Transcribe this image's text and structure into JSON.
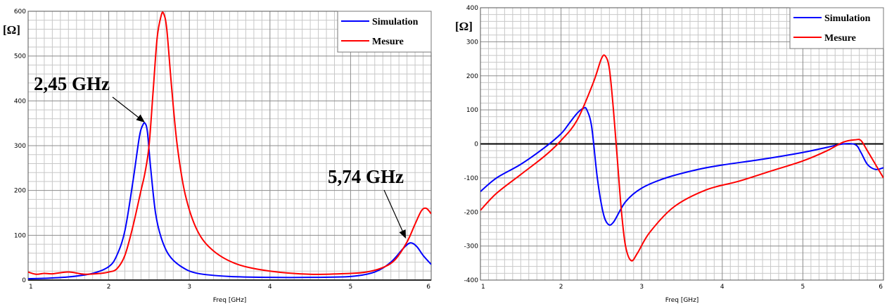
{
  "chart_data": [
    {
      "type": "line",
      "title": "",
      "xlabel": "Freq [GHz]",
      "ylabel": "[Ω]",
      "xlim": [
        1,
        6
      ],
      "ylim": [
        0,
        600
      ],
      "xticks": [
        1,
        2,
        3,
        4,
        5,
        6
      ],
      "yticks": [
        0,
        100,
        200,
        300,
        400,
        500,
        600
      ],
      "x_tick_labels": [
        "1",
        "2",
        "3",
        "4",
        "5",
        "6"
      ],
      "y_tick_labels": [
        "0",
        "100",
        "200",
        "300",
        "400",
        "500",
        "600"
      ],
      "grid": true,
      "legend_position": "top-right",
      "series": [
        {
          "name": "Simulation",
          "color": "#0000ff",
          "x": [
            1.0,
            1.2,
            1.5,
            1.8,
            2.0,
            2.1,
            2.2,
            2.3,
            2.38,
            2.42,
            2.45,
            2.48,
            2.52,
            2.58,
            2.65,
            2.75,
            2.9,
            3.1,
            3.5,
            4.0,
            4.5,
            5.0,
            5.3,
            5.5,
            5.65,
            5.74,
            5.82,
            5.9,
            6.0
          ],
          "values": [
            3,
            4,
            7,
            15,
            30,
            55,
            110,
            220,
            320,
            345,
            350,
            330,
            250,
            150,
            95,
            55,
            30,
            15,
            8,
            6,
            6,
            8,
            18,
            40,
            70,
            83,
            75,
            55,
            35
          ]
        },
        {
          "name": "Mesure",
          "color": "#ff0000",
          "x": [
            1.0,
            1.1,
            1.2,
            1.3,
            1.5,
            1.7,
            1.9,
            2.0,
            2.1,
            2.2,
            2.3,
            2.4,
            2.45,
            2.5,
            2.55,
            2.6,
            2.65,
            2.68,
            2.72,
            2.78,
            2.85,
            2.95,
            3.1,
            3.3,
            3.6,
            4.0,
            4.5,
            5.0,
            5.2,
            5.4,
            5.55,
            5.7,
            5.8,
            5.88,
            5.94,
            6.0
          ],
          "values": [
            18,
            13,
            15,
            14,
            18,
            13,
            15,
            18,
            25,
            55,
            120,
            200,
            240,
            300,
            420,
            540,
            590,
            595,
            560,
            430,
            300,
            190,
            110,
            65,
            35,
            20,
            13,
            15,
            18,
            28,
            45,
            85,
            125,
            155,
            160,
            148
          ]
        }
      ],
      "annotations": [
        {
          "text": "2,45 GHz",
          "x": 2.45,
          "y": 350
        },
        {
          "text": "5,74 GHz",
          "x": 5.74,
          "y": 83
        }
      ]
    },
    {
      "type": "line",
      "title": "",
      "xlabel": "Freq [GHz]",
      "ylabel": "[Ω]",
      "xlim": [
        1,
        6
      ],
      "ylim": [
        -400,
        400
      ],
      "xticks": [
        1,
        2,
        3,
        4,
        5,
        6
      ],
      "yticks": [
        -400,
        -300,
        -200,
        -100,
        0,
        100,
        200,
        300,
        400
      ],
      "x_tick_labels": [
        "1",
        "2",
        "3",
        "4",
        "5",
        "6"
      ],
      "y_tick_labels": [
        "-400",
        "-300",
        "-200",
        "-100",
        "0",
        "100",
        "200",
        "300",
        "400"
      ],
      "grid": true,
      "legend_position": "top-right",
      "series": [
        {
          "name": "Simulation",
          "color": "#0000ff",
          "x": [
            1.0,
            1.2,
            1.5,
            1.8,
            2.0,
            2.1,
            2.2,
            2.28,
            2.32,
            2.38,
            2.45,
            2.52,
            2.58,
            2.65,
            2.8,
            3.0,
            3.3,
            3.7,
            4.0,
            4.5,
            5.0,
            5.3,
            5.5,
            5.65,
            5.72,
            5.8,
            5.9,
            6.0
          ],
          "values": [
            -140,
            -100,
            -60,
            -10,
            30,
            60,
            90,
            105,
            100,
            50,
            -100,
            -200,
            -235,
            -230,
            -170,
            -130,
            -100,
            -75,
            -62,
            -45,
            -25,
            -10,
            0,
            -2,
            -25,
            -60,
            -75,
            -70
          ]
        },
        {
          "name": "Mesure",
          "color": "#ff0000",
          "x": [
            1.0,
            1.2,
            1.5,
            1.8,
            2.0,
            2.2,
            2.4,
            2.5,
            2.55,
            2.6,
            2.65,
            2.7,
            2.75,
            2.8,
            2.87,
            2.95,
            3.1,
            3.4,
            3.8,
            4.2,
            4.6,
            5.0,
            5.3,
            5.5,
            5.65,
            5.72,
            5.8,
            5.9,
            6.0
          ],
          "values": [
            -195,
            -145,
            -90,
            -35,
            10,
            70,
            180,
            250,
            258,
            220,
            100,
            -50,
            -200,
            -300,
            -343,
            -320,
            -260,
            -185,
            -135,
            -110,
            -80,
            -50,
            -20,
            5,
            12,
            10,
            -20,
            -60,
            -100
          ]
        }
      ],
      "annotations": []
    }
  ]
}
